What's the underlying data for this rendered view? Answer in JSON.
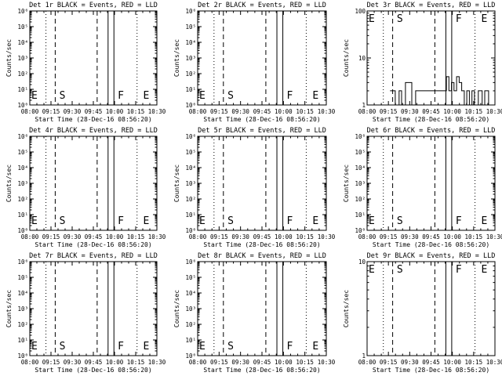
{
  "figure": {
    "time_axis_label": "Start Time (28-Dec-16 08:56:20)",
    "y_axis_label": "Counts/sec",
    "x_ticks": [
      "08:00",
      "09:15",
      "09:30",
      "09:45",
      "10:00",
      "10:15",
      "10:30"
    ],
    "markers": [
      "E",
      "S",
      "F",
      "E"
    ]
  },
  "chart_data": [
    {
      "type": "line",
      "title": "Det 1r BLACK = Events, RED = LLD",
      "ylabel": "Counts/sec",
      "xlabel": "Start Time (28-Dec-16 08:56:20)",
      "y_scale": "log",
      "ylim": [
        1,
        1000000
      ],
      "y_tick_labels": [
        "10⁰",
        "10¹",
        "10²",
        "10³",
        "10⁴",
        "10⁵",
        "10⁶"
      ],
      "x_tick_labels": [
        "08:00",
        "09:15",
        "09:30",
        "09:45",
        "10:00",
        "10:15",
        "10:30"
      ],
      "marker_labels": [
        "E",
        "S",
        "F",
        "E"
      ],
      "series": []
    },
    {
      "type": "line",
      "title": "Det 2r BLACK = Events, RED = LLD",
      "ylabel": "Counts/sec",
      "xlabel": "Start Time (28-Dec-16 08:56:20)",
      "y_scale": "log",
      "ylim": [
        1,
        1000000
      ],
      "y_tick_labels": [
        "10⁰",
        "10¹",
        "10²",
        "10³",
        "10⁴",
        "10⁵",
        "10⁶"
      ],
      "x_tick_labels": [
        "08:00",
        "09:15",
        "09:30",
        "09:45",
        "10:00",
        "10:15",
        "10:30"
      ],
      "marker_labels": [
        "E",
        "S",
        "F",
        "E"
      ],
      "series": []
    },
    {
      "type": "line",
      "title": "Det 3r BLACK = Events, RED = LLD",
      "ylabel": "Counts/sec",
      "xlabel": "Start Time (28-Dec-16 08:56:20)",
      "y_scale": "log",
      "ylim": [
        1,
        100
      ],
      "y_tick_labels": [
        "1",
        "10",
        "100"
      ],
      "x_tick_labels": [
        "08:00",
        "09:15",
        "09:30",
        "09:45",
        "10:00",
        "10:15",
        "10:30"
      ],
      "marker_labels": [
        "E",
        "S",
        "F",
        "E"
      ],
      "series": [
        {
          "name": "Events",
          "x": [
            0.18,
            0.2,
            0.22,
            0.22,
            0.25,
            0.25,
            0.27,
            0.27,
            0.3,
            0.3,
            0.33,
            0.35,
            0.35,
            0.38,
            0.38,
            0.62,
            0.62,
            0.64,
            0.64,
            0.66,
            0.66,
            0.68,
            0.68,
            0.7,
            0.7,
            0.72,
            0.72,
            0.74,
            0.74,
            0.76,
            0.76,
            0.78,
            0.78,
            0.8,
            0.8,
            0.82,
            0.82,
            0.84,
            0.84,
            0.87,
            0.87,
            0.9,
            0.9,
            0.92,
            0.92,
            0.95,
            0.95,
            0.98
          ],
          "y": [
            2,
            2,
            2,
            1,
            1,
            2,
            2,
            1,
            1,
            3,
            3,
            3,
            1,
            1,
            2,
            2,
            4,
            4,
            2,
            2,
            3,
            3,
            2,
            2,
            4,
            4,
            3,
            3,
            2,
            2,
            1,
            1,
            2,
            2,
            1,
            1,
            2,
            2,
            1,
            1,
            2,
            2,
            1,
            1,
            2,
            2,
            1,
            1
          ]
        }
      ]
    },
    {
      "type": "line",
      "title": "Det 4r BLACK = Events, RED = LLD",
      "ylabel": "Counts/sec",
      "xlabel": "Start Time (28-Dec-16 08:56:20)",
      "y_scale": "log",
      "ylim": [
        1,
        1000000
      ],
      "y_tick_labels": [
        "10⁰",
        "10¹",
        "10²",
        "10³",
        "10⁴",
        "10⁵",
        "10⁶"
      ],
      "x_tick_labels": [
        "08:00",
        "09:15",
        "09:30",
        "09:45",
        "10:00",
        "10:15",
        "10:30"
      ],
      "marker_labels": [
        "E",
        "S",
        "F",
        "E"
      ],
      "series": []
    },
    {
      "type": "line",
      "title": "Det 5r BLACK = Events, RED = LLD",
      "ylabel": "Counts/sec",
      "xlabel": "Start Time (28-Dec-16 08:56:20)",
      "y_scale": "log",
      "ylim": [
        1,
        1000000
      ],
      "y_tick_labels": [
        "10⁰",
        "10¹",
        "10²",
        "10³",
        "10⁴",
        "10⁵",
        "10⁶"
      ],
      "x_tick_labels": [
        "08:00",
        "09:15",
        "09:30",
        "09:45",
        "10:00",
        "10:15",
        "10:30"
      ],
      "marker_labels": [
        "E",
        "S",
        "F",
        "E"
      ],
      "series": []
    },
    {
      "type": "line",
      "title": "Det 6r BLACK = Events, RED = LLD",
      "ylabel": "Counts/sec",
      "xlabel": "Start Time (28-Dec-16 08:56:20)",
      "y_scale": "log",
      "ylim": [
        1,
        1000000
      ],
      "y_tick_labels": [
        "10⁰",
        "10¹",
        "10²",
        "10³",
        "10⁴",
        "10⁵",
        "10⁶"
      ],
      "x_tick_labels": [
        "08:00",
        "09:15",
        "09:30",
        "09:45",
        "10:00",
        "10:15",
        "10:30"
      ],
      "marker_labels": [
        "E",
        "S",
        "F",
        "E"
      ],
      "series": []
    },
    {
      "type": "line",
      "title": "Det 7r BLACK = Events, RED = LLD",
      "ylabel": "Counts/sec",
      "xlabel": "Start Time (28-Dec-16 08:56:20)",
      "y_scale": "log",
      "ylim": [
        1,
        1000000
      ],
      "y_tick_labels": [
        "10⁰",
        "10¹",
        "10²",
        "10³",
        "10⁴",
        "10⁵",
        "10⁶"
      ],
      "x_tick_labels": [
        "08:00",
        "09:15",
        "09:30",
        "09:45",
        "10:00",
        "10:15",
        "10:30"
      ],
      "marker_labels": [
        "E",
        "S",
        "F",
        "E"
      ],
      "series": []
    },
    {
      "type": "line",
      "title": "Det 8r BLACK = Events, RED = LLD",
      "ylabel": "Counts/sec",
      "xlabel": "Start Time (28-Dec-16 08:56:20)",
      "y_scale": "log",
      "ylim": [
        1,
        1000000
      ],
      "y_tick_labels": [
        "10⁰",
        "10¹",
        "10²",
        "10³",
        "10⁴",
        "10⁵",
        "10⁶"
      ],
      "x_tick_labels": [
        "08:00",
        "09:15",
        "09:30",
        "09:45",
        "10:00",
        "10:15",
        "10:30"
      ],
      "marker_labels": [
        "E",
        "S",
        "F",
        "E"
      ],
      "series": []
    },
    {
      "type": "line",
      "title": "Det 9r BLACK = Events, RED = LLD",
      "ylabel": "Counts/sec",
      "xlabel": "Start Time (28-Dec-16 08:56:20)",
      "y_scale": "log",
      "ylim": [
        1,
        10
      ],
      "y_tick_labels": [
        "1",
        "10"
      ],
      "x_tick_labels": [
        "08:00",
        "09:15",
        "09:30",
        "09:45",
        "10:00",
        "10:15",
        "10:30"
      ],
      "marker_labels": [
        "E",
        "S",
        "F",
        "E"
      ],
      "series": []
    }
  ]
}
